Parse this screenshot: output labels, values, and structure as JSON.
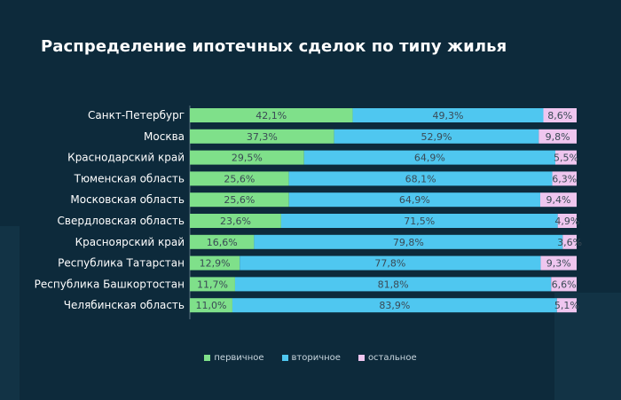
{
  "title": "Распределение ипотечных сделок по типу жилья",
  "colors": {
    "primary": "#7fe08a",
    "secondary": "#4fc7f0",
    "other": "#efc6ef",
    "label": "#3a4a55",
    "axis_text": "#ffffff"
  },
  "chart_data": {
    "type": "bar",
    "orientation": "horizontal",
    "stacked": "100%",
    "title": "Распределение ипотечных сделок по типу жилья",
    "categories": [
      "Санкт-Петербург",
      "Москва",
      "Краснодарский край",
      "Тюменская область",
      "Московская область",
      "Свердловская область",
      "Красноярский край",
      "Республика Татарстан",
      "Республика Башкортостан",
      "Челябинская область"
    ],
    "series": [
      {
        "name": "первичное",
        "color": "#7fe08a",
        "values": [
          42.1,
          37.3,
          29.5,
          25.6,
          25.6,
          23.6,
          16.6,
          12.9,
          11.7,
          11.0
        ],
        "labels": [
          "42,1%",
          "37,3%",
          "29,5%",
          "25,6%",
          "25,6%",
          "23,6%",
          "16,6%",
          "12,9%",
          "11,7%",
          "11,0%"
        ]
      },
      {
        "name": "вторичное",
        "color": "#4fc7f0",
        "values": [
          49.3,
          52.9,
          64.9,
          68.1,
          64.9,
          71.5,
          79.8,
          77.8,
          81.8,
          83.9
        ],
        "labels": [
          "49,3%",
          "52,9%",
          "64,9%",
          "68,1%",
          "64,9%",
          "71,5%",
          "79,8%",
          "77,8%",
          "81,8%",
          "83,9%"
        ]
      },
      {
        "name": "остальное",
        "color": "#efc6ef",
        "values": [
          8.6,
          9.8,
          5.5,
          6.3,
          9.4,
          4.9,
          3.6,
          9.3,
          6.6,
          5.1
        ],
        "labels": [
          "8,6%",
          "9,8%",
          "5,5%",
          "6,3%",
          "9,4%",
          "4,9%",
          "3,6%",
          "9,3%",
          "6,6%",
          "5,1%"
        ]
      }
    ],
    "legend_position": "bottom-center"
  }
}
